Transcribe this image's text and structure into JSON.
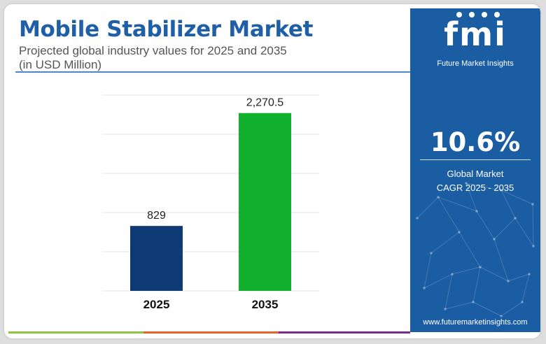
{
  "title": "Mobile Stabilizer Market",
  "subtitle_line1": "Projected global industry values for 2025 and 2035",
  "subtitle_line2": "(in USD Million)",
  "chart_data": {
    "type": "bar",
    "categories": [
      "2025",
      "2035"
    ],
    "values": [
      829,
      2270.5
    ],
    "value_labels": [
      "829",
      "2,270.5"
    ],
    "bar_colors": [
      "#0d3a73",
      "#12b02f"
    ],
    "ylim": [
      0,
      2500
    ],
    "grid": true,
    "y_axis_labels_shown": false,
    "legend": "none"
  },
  "sidebar": {
    "logo_mark": "fmi",
    "logo_text": "Future Market Insights",
    "cagr_value": "10.6%",
    "cagr_label_line1": "Global Market",
    "cagr_label_line2": "CAGR 2025 - 2035",
    "website": "www.futuremarketinsights.com",
    "background_color": "#1a5da3"
  },
  "footer_stripe_colors": [
    "#8cc63f",
    "#e8632b",
    "#7b2d8e"
  ]
}
